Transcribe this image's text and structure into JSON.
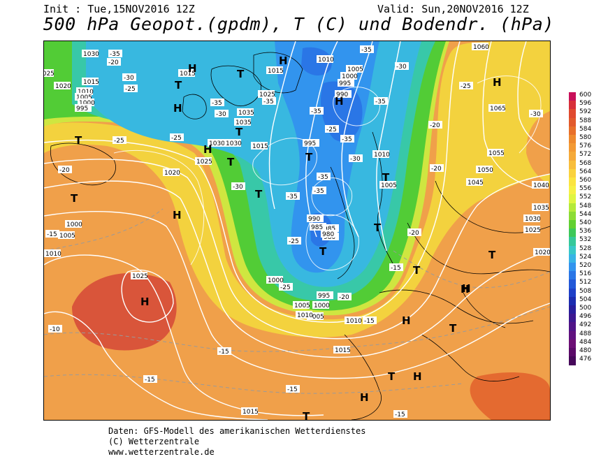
{
  "header": {
    "init": "Init : Tue,15NOV2016 12Z",
    "valid": "Valid: Sun,20NOV2016 12Z",
    "title": "500 hPa Geopot.(gpdm), T (C) und Bodendr. (hPa)"
  },
  "legend": {
    "values": [
      "600",
      "596",
      "592",
      "588",
      "584",
      "580",
      "576",
      "572",
      "568",
      "564",
      "560",
      "556",
      "552",
      "548",
      "544",
      "540",
      "536",
      "532",
      "528",
      "524",
      "520",
      "516",
      "512",
      "508",
      "504",
      "500",
      "496",
      "492",
      "488",
      "484",
      "480",
      "476"
    ],
    "colors": [
      "#c8105a",
      "#d7303a",
      "#e04a2f",
      "#e25a2c",
      "#e8702a",
      "#ee8a2e",
      "#f39a34",
      "#f5aa3a",
      "#f8be3c",
      "#fad23e",
      "#fbe440",
      "#f6f045",
      "#dff542",
      "#b4ea3a",
      "#8cdc35",
      "#62d032",
      "#3dc85a",
      "#35c89a",
      "#38c8c8",
      "#38b4e6",
      "#3294ee",
      "#2a76e6",
      "#2258d8",
      "#1e40c8",
      "#1c2cb0",
      "#281e9c",
      "#3c1890",
      "#501487",
      "#60127f",
      "#6c0f75",
      "#5a0a68",
      "#46085a"
    ]
  },
  "map": {
    "pressure_labels": [
      "1030",
      "1025",
      "1020",
      "1015",
      "1010",
      "1005",
      "1000",
      "995",
      "990",
      "985",
      "980",
      "1035",
      "1060",
      "1065",
      "1055",
      "1050",
      "1045",
      "1040",
      "1035",
      "1030",
      "1025",
      "1020",
      "1015",
      "1010",
      "1005",
      "1000",
      "995",
      "1000",
      "1005",
      "1010",
      "1015",
      "1020",
      "1025",
      "1025",
      "1030",
      "1030",
      "1015",
      "1035",
      "1025",
      "1010",
      "1015",
      "1010",
      "1005",
      "1000",
      "995",
      "1000",
      "1005",
      "1010",
      "1015",
      "990",
      "985",
      "980",
      "995",
      "1010",
      "1005"
    ],
    "temp_labels": [
      "-35",
      "-30",
      "-25",
      "-35",
      "-30",
      "-25",
      "-35",
      "-30",
      "-25",
      "-20",
      "-35",
      "-25",
      "-30",
      "-35",
      "-35",
      "-35",
      "-35",
      "-35",
      "-35",
      "-30",
      "-25",
      "-20",
      "-25",
      "-30",
      "-20",
      "-20",
      "-20",
      "-15",
      "-15",
      "-15",
      "-10",
      "-15",
      "-15",
      "-15",
      "-25",
      "-20",
      "-15"
    ],
    "systems": [
      "H",
      "T",
      "H",
      "T",
      "H",
      "T",
      "H",
      "H",
      "T",
      "T",
      "T",
      "H",
      "T",
      "H",
      "T",
      "H",
      "H",
      "T",
      "T",
      "H",
      "T",
      "T",
      "T",
      "H",
      "T",
      "H",
      "T",
      "H",
      "T"
    ]
  },
  "footer": {
    "line1": "Daten: GFS-Modell des amerikanischen Wetterdienstes",
    "line2": "(C) Wetterzentrale",
    "line3": "www.wetterzentrale.de"
  }
}
